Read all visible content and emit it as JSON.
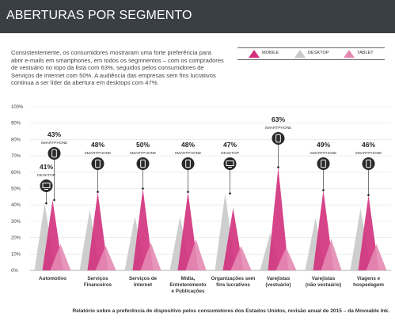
{
  "header": {
    "title": "ABERTURAS POR SEGMENTO"
  },
  "intro": {
    "text": "Consistentemente, os consumidores mostraram uma forte preferência para abrir e-mails em smartphones, em todos os segmnentos – com os compradores de vestuário no topo da lista com 63%, seguidos pelos consumidores de Serviços de Internet com 50%. A audiência das empresas sem fins lucrativos continua a ser líder da abertura em desktops com 47%."
  },
  "legend": [
    {
      "label": "MOBILE",
      "color": "#d1307c"
    },
    {
      "label": "DESKTOP",
      "color": "#c9c9c9"
    },
    {
      "label": "TABLET",
      "color": "#e48ab2"
    }
  ],
  "colors": {
    "mobile": "#d1307c",
    "desktop": "#c9c9c9",
    "tablet": "#e48ab2",
    "icon": "#2a2a2a"
  },
  "chart_data": {
    "type": "area",
    "ylim": [
      0,
      100
    ],
    "y_ticks": [
      "0%",
      "10%",
      "20%",
      "30%",
      "40%",
      "50%",
      "60%",
      "70%",
      "80%",
      "90%",
      "100%"
    ],
    "categories": [
      [
        "Automotivo"
      ],
      [
        "Serviços",
        "Financeiros"
      ],
      [
        "Serviços de",
        "Internet"
      ],
      [
        "Mídia,",
        "Entretenimento",
        "e Publicações"
      ],
      [
        "Organizações sem",
        "fins lucrativos"
      ],
      [
        "Varejistas",
        "(vestuário)"
      ],
      [
        "Varejistas",
        "(não vestuário)"
      ],
      [
        "Viagens e",
        "hospedagem"
      ]
    ],
    "series": [
      {
        "name": "DESKTOP",
        "values": [
          41,
          37,
          33,
          33,
          47,
          23,
          32,
          38
        ]
      },
      {
        "name": "MOBILE",
        "values": [
          43,
          48,
          50,
          48,
          38,
          63,
          49,
          46
        ]
      },
      {
        "name": "TABLET",
        "values": [
          16,
          15,
          17,
          19,
          15,
          14,
          19,
          16
        ]
      }
    ],
    "annotations": [
      {
        "category": 0,
        "value": "43%",
        "label": "SMARTPHONE",
        "device": "smartphone"
      },
      {
        "category": 0,
        "value": "41%",
        "label": "DESKTOP",
        "device": "desktop"
      },
      {
        "category": 1,
        "value": "48%",
        "label": "SMARTPHONE",
        "device": "smartphone"
      },
      {
        "category": 2,
        "value": "50%",
        "label": "SMARTPHONE",
        "device": "smartphone"
      },
      {
        "category": 3,
        "value": "48%",
        "label": "SMARTPHONE",
        "device": "smartphone"
      },
      {
        "category": 4,
        "value": "47%",
        "label": "DESKTOP",
        "device": "desktop"
      },
      {
        "category": 5,
        "value": "63%",
        "label": "SMARTPHONE",
        "device": "smartphone"
      },
      {
        "category": 6,
        "value": "49%",
        "label": "SMARTPHONE",
        "device": "smartphone"
      },
      {
        "category": 7,
        "value": "46%",
        "label": "SMARTPHONE",
        "device": "smartphone"
      }
    ]
  },
  "footer": {
    "source": "Relatório sobre a preferência de dispositivo pelos consumidores dos Estados Unidos, revisão anual de 2015 – da Moveable Ink."
  }
}
